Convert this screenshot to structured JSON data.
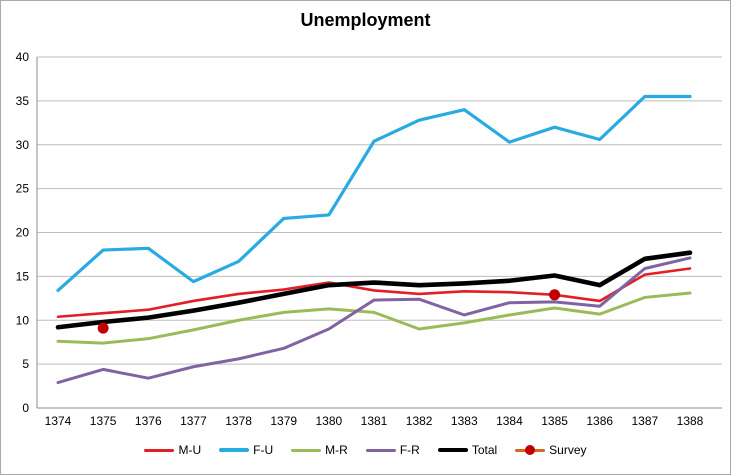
{
  "chart_data": {
    "type": "line",
    "title": "Unemployment",
    "xlabel": "",
    "ylabel": "",
    "categories": [
      "1374",
      "1375",
      "1376",
      "1377",
      "1378",
      "1379",
      "1380",
      "1381",
      "1382",
      "1383",
      "1384",
      "1385",
      "1386",
      "1387",
      "1388"
    ],
    "ylim": [
      0,
      40
    ],
    "yticks": [
      0,
      5,
      10,
      15,
      20,
      25,
      30,
      35,
      40
    ],
    "grid": "horizontal",
    "legend_position": "bottom",
    "series": [
      {
        "name": "M-U",
        "type": "line",
        "color": "#e01f26",
        "width": 2.6,
        "values": [
          10.4,
          10.8,
          11.2,
          12.2,
          13.0,
          13.5,
          14.3,
          13.4,
          13.0,
          13.3,
          13.2,
          12.9,
          12.2,
          15.2,
          15.9
        ]
      },
      {
        "name": "F-U",
        "type": "line",
        "color": "#29abe2",
        "width": 3.2,
        "values": [
          13.4,
          18.0,
          18.2,
          14.4,
          16.7,
          21.6,
          22.0,
          30.4,
          32.8,
          34.0,
          30.3,
          32.0,
          30.6,
          35.5,
          35.5
        ]
      },
      {
        "name": "M-R",
        "type": "line",
        "color": "#9bbb59",
        "width": 3.0,
        "values": [
          7.6,
          7.4,
          7.9,
          8.9,
          10.0,
          10.9,
          11.3,
          10.9,
          9.0,
          9.7,
          10.6,
          11.4,
          10.7,
          12.6,
          13.1
        ]
      },
      {
        "name": "F-R",
        "type": "line",
        "color": "#8064a2",
        "width": 3.0,
        "values": [
          2.9,
          4.4,
          3.4,
          4.7,
          5.6,
          6.8,
          9.0,
          12.3,
          12.4,
          10.6,
          12.0,
          12.1,
          11.6,
          15.9,
          17.1
        ]
      },
      {
        "name": "Total",
        "type": "line",
        "color": "#000000",
        "width": 4.6,
        "values": [
          9.2,
          9.8,
          10.3,
          11.1,
          12.0,
          13.0,
          14.0,
          14.3,
          14.0,
          14.2,
          14.5,
          15.1,
          14.0,
          17.0,
          17.7
        ]
      },
      {
        "name": "Survey",
        "type": "scatter",
        "color": "#c00000",
        "line_color": "#d2691e",
        "marker": "circle",
        "points": [
          {
            "x": "1375",
            "y": 9.1
          },
          {
            "x": "1385",
            "y": 12.9
          }
        ]
      }
    ],
    "colors": {
      "gridline": "#bdbdbd",
      "axis": "#8c8c8c",
      "tick_label": "#000000"
    }
  }
}
